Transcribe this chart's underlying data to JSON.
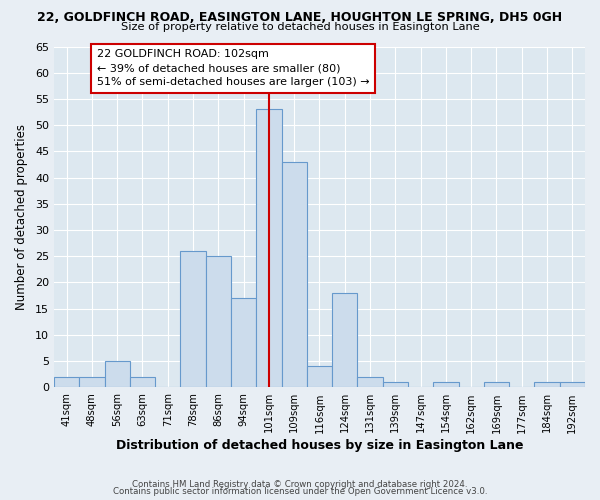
{
  "title_line1": "22, GOLDFINCH ROAD, EASINGTON LANE, HOUGHTON LE SPRING, DH5 0GH",
  "title_line2": "Size of property relative to detached houses in Easington Lane",
  "xlabel": "Distribution of detached houses by size in Easington Lane",
  "ylabel": "Number of detached properties",
  "bar_labels": [
    "41sqm",
    "48sqm",
    "56sqm",
    "63sqm",
    "71sqm",
    "78sqm",
    "86sqm",
    "94sqm",
    "101sqm",
    "109sqm",
    "116sqm",
    "124sqm",
    "131sqm",
    "139sqm",
    "147sqm",
    "154sqm",
    "162sqm",
    "169sqm",
    "177sqm",
    "184sqm",
    "192sqm"
  ],
  "bar_values": [
    2,
    2,
    5,
    2,
    0,
    26,
    25,
    17,
    53,
    43,
    4,
    18,
    2,
    1,
    0,
    1,
    0,
    1,
    0,
    1,
    1
  ],
  "bar_color": "#ccdcec",
  "bar_edge_color": "#6699cc",
  "vline_color": "#cc0000",
  "annotation_line1": "22 GOLDFINCH ROAD: 102sqm",
  "annotation_line2": "← 39% of detached houses are smaller (80)",
  "annotation_line3": "51% of semi-detached houses are larger (103) →",
  "annotation_box_edge": "#cc0000",
  "ylim": [
    0,
    65
  ],
  "yticks": [
    0,
    5,
    10,
    15,
    20,
    25,
    30,
    35,
    40,
    45,
    50,
    55,
    60,
    65
  ],
  "background_color": "#e8eef4",
  "plot_bg_color": "#dde8f0",
  "grid_color": "#ffffff",
  "footer_line1": "Contains HM Land Registry data © Crown copyright and database right 2024.",
  "footer_line2": "Contains public sector information licensed under the Open Government Licence v3.0."
}
